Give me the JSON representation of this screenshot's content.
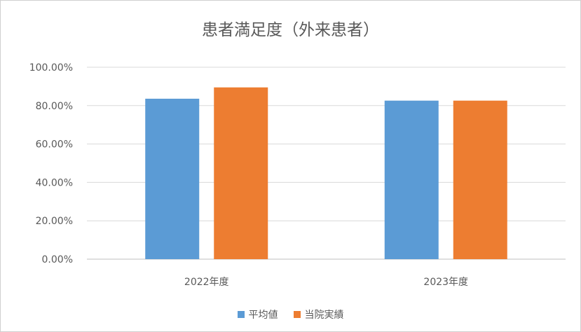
{
  "chart_data": {
    "type": "bar",
    "title": "患者満足度（外来患者）",
    "categories": [
      "2022年度",
      "2023年度"
    ],
    "series": [
      {
        "name": "平均値",
        "values": [
          83.6,
          82.6
        ],
        "color": "#5b9bd5"
      },
      {
        "name": "当院実績",
        "values": [
          89.5,
          82.6
        ],
        "color": "#ed7d31"
      }
    ],
    "ylim": [
      0,
      100
    ],
    "yticks": [
      "0.00%",
      "20.00%",
      "40.00%",
      "60.00%",
      "80.00%",
      "100.00%"
    ],
    "xlabel": "",
    "ylabel": "",
    "grid": true,
    "legend_position": "bottom"
  }
}
